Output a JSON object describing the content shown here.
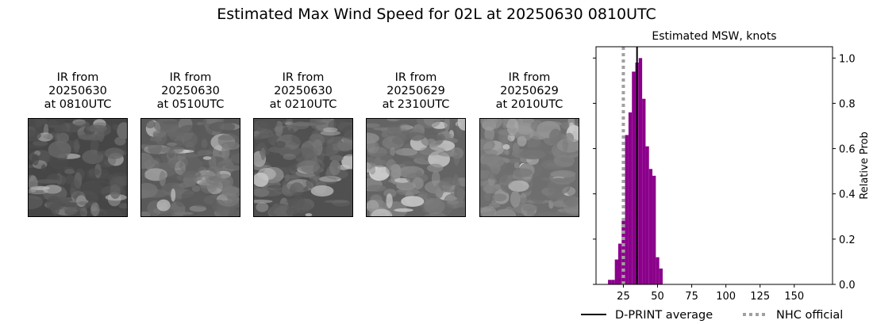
{
  "title": "Estimated Max Wind Speed for 02L at 20250630 0810UTC",
  "ir_panels": [
    {
      "line1": "IR from",
      "line2": "20250630",
      "line3": "at 0810UTC"
    },
    {
      "line1": "IR from",
      "line2": "20250630",
      "line3": "at 0510UTC"
    },
    {
      "line1": "IR from",
      "line2": "20250630",
      "line3": "at 0210UTC"
    },
    {
      "line1": "IR from",
      "line2": "20250629",
      "line3": "at 2310UTC"
    },
    {
      "line1": "IR from",
      "line2": "20250629",
      "line3": "at 2010UTC"
    }
  ],
  "chart_data": {
    "type": "bar",
    "title": "Estimated MSW, knots",
    "xlabel": "",
    "ylabel": "Relative Prob",
    "xlim": [
      5,
      178
    ],
    "ylim": [
      0,
      1.05
    ],
    "xticks": [
      25,
      50,
      75,
      100,
      125,
      150
    ],
    "yticks": [
      0.0,
      0.2,
      0.4,
      0.6,
      0.8,
      1.0
    ],
    "bar_width": 2.5,
    "bar_color": "#8b008b",
    "bars": [
      {
        "x": 15,
        "value": 0.02
      },
      {
        "x": 17.5,
        "value": 0.02
      },
      {
        "x": 20,
        "value": 0.11
      },
      {
        "x": 22.5,
        "value": 0.18
      },
      {
        "x": 25,
        "value": 0.28
      },
      {
        "x": 27.5,
        "value": 0.66
      },
      {
        "x": 30,
        "value": 0.76
      },
      {
        "x": 32.5,
        "value": 0.94
      },
      {
        "x": 35,
        "value": 0.98
      },
      {
        "x": 37.5,
        "value": 1.0
      },
      {
        "x": 40,
        "value": 0.82
      },
      {
        "x": 42.5,
        "value": 0.61
      },
      {
        "x": 45,
        "value": 0.51
      },
      {
        "x": 47.5,
        "value": 0.48
      },
      {
        "x": 50,
        "value": 0.12
      },
      {
        "x": 52.5,
        "value": 0.07
      }
    ],
    "dprint_average": 35,
    "nhc_official": 25,
    "legend": [
      {
        "label": "D-PRINT average",
        "color": "#000000",
        "style": "solid"
      },
      {
        "label": "NHC official",
        "color": "#a0a0a0",
        "style": "dotted"
      }
    ],
    "legend_position": "bottom"
  }
}
